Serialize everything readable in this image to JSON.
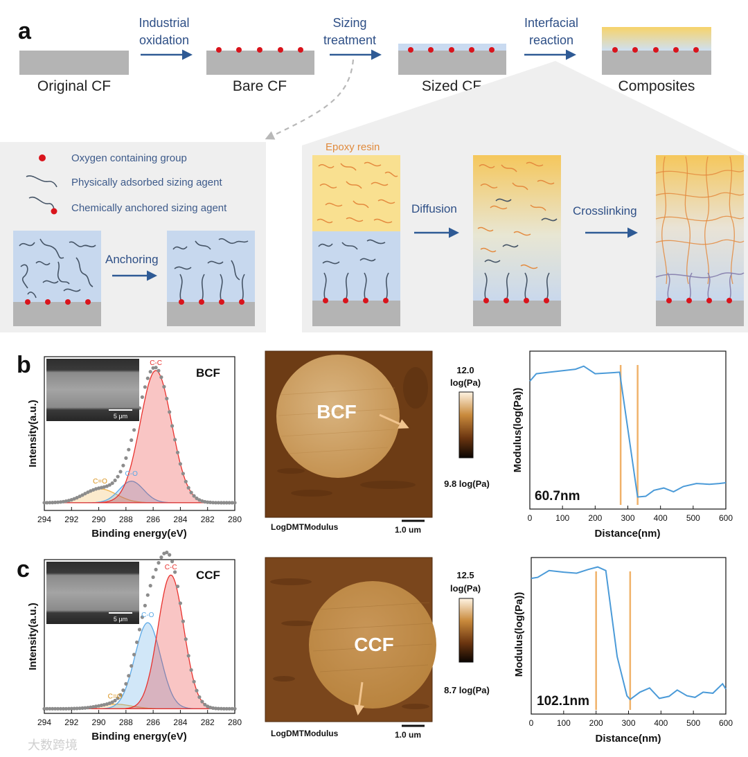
{
  "panel_a": {
    "label": "a",
    "stages": [
      "Original CF",
      "Bare CF",
      "Sized CF",
      "Composites"
    ],
    "steps": [
      {
        "line1": "Industrial",
        "line2": "oxidation"
      },
      {
        "line1": "Sizing",
        "line2": "treatment"
      },
      {
        "line1": "Interfacial",
        "line2": "reaction"
      }
    ],
    "legend": [
      "Oxygen containing group",
      "Physically adsorbed sizing agent",
      "Chemically anchored sizing agent"
    ],
    "anchoring_label": "Anchoring",
    "epoxy_label": "Epoxy resin",
    "diffusion_label": "Diffusion",
    "crosslinking_label": "Crosslinking"
  },
  "panel_b": {
    "label": "b",
    "sample": "BCF",
    "scale_bar_sem": "5 μm",
    "afm_label": "BCF",
    "colorbar_max": "12.0",
    "colorbar_unit": "log(Pa)",
    "colorbar_min": "9.8 log(Pa)",
    "afm_caption": "LogDMTModulus",
    "afm_scale": "1.0 um",
    "thickness": "60.7nm"
  },
  "panel_c": {
    "label": "c",
    "sample": "CCF",
    "scale_bar_sem": "5 μm",
    "afm_label": "CCF",
    "colorbar_max": "12.5",
    "colorbar_unit": "log(Pa)",
    "colorbar_min": "8.7 log(Pa)",
    "afm_caption": "LogDMTModulus",
    "afm_scale": "1.0 um",
    "thickness": "102.1nm"
  },
  "watermark": "大数跨境",
  "chart_data": [
    {
      "id": "xps-bcf",
      "type": "line",
      "title": "",
      "xlabel": "Binding energy(eV)",
      "ylabel": "Intensity(a.u.)",
      "xlim": [
        294,
        280
      ],
      "ylim": [
        0,
        1
      ],
      "xticks": [
        "294",
        "292",
        "290",
        "288",
        "286",
        "284",
        "282",
        "280"
      ],
      "peaks": [
        {
          "name": "C=O",
          "center": 289.9,
          "height": 0.09,
          "width": 1.2,
          "color": "#f0b24a"
        },
        {
          "name": "C-O",
          "center": 287.6,
          "height": 0.14,
          "width": 0.9,
          "color": "#5aa8e6"
        },
        {
          "name": "C-C",
          "center": 285.8,
          "height": 0.86,
          "width": 1.15,
          "color": "#e8302c"
        }
      ],
      "baseline": 0.05
    },
    {
      "id": "xps-ccf",
      "type": "line",
      "title": "",
      "xlabel": "Binding energy(eV)",
      "ylabel": "Intensity(a.u.)",
      "xlim": [
        294,
        280
      ],
      "ylim": [
        0,
        1
      ],
      "xticks": [
        "294",
        "292",
        "290",
        "288",
        "286",
        "284",
        "282",
        "280"
      ],
      "peaks": [
        {
          "name": "C=O",
          "center": 288.8,
          "height": 0.03,
          "width": 1.2,
          "color": "#f0b24a"
        },
        {
          "name": "C-O",
          "center": 286.4,
          "height": 0.56,
          "width": 0.95,
          "color": "#5aa8e6"
        },
        {
          "name": "C-C",
          "center": 284.7,
          "height": 0.87,
          "width": 0.95,
          "color": "#e8302c"
        }
      ],
      "baseline": 0.03
    },
    {
      "id": "modulus-bcf",
      "type": "line",
      "xlabel": "Distance(nm)",
      "ylabel": "Modulus(log(Pa))",
      "xlim": [
        0,
        600
      ],
      "xticks": [
        "0",
        "100",
        "200",
        "300",
        "400",
        "500",
        "600"
      ],
      "series": [
        {
          "name": "modulus",
          "x": [
            0,
            20,
            60,
            100,
            140,
            165,
            200,
            240,
            275,
            330,
            355,
            380,
            410,
            440,
            470,
            510,
            550,
            580,
            600
          ],
          "y": [
            11.6,
            11.7,
            11.72,
            11.74,
            11.76,
            11.8,
            11.7,
            11.71,
            11.72,
            10.06,
            10.07,
            10.15,
            10.18,
            10.13,
            10.2,
            10.24,
            10.23,
            10.24,
            10.25
          ]
        }
      ],
      "markers_x": [
        278,
        330
      ],
      "ylim": [
        9.9,
        12.0
      ]
    },
    {
      "id": "modulus-ccf",
      "type": "line",
      "xlabel": "Distance(nm)",
      "ylabel": "Modulus(log(Pa))",
      "xlim": [
        0,
        600
      ],
      "xticks": [
        "0",
        "100",
        "200",
        "300",
        "400",
        "500",
        "600"
      ],
      "series": [
        {
          "name": "modulus",
          "x": [
            0,
            20,
            55,
            100,
            140,
            175,
            205,
            230,
            265,
            295,
            305,
            335,
            365,
            395,
            425,
            450,
            480,
            505,
            530,
            560,
            590,
            600
          ],
          "y": [
            11.8,
            11.82,
            11.95,
            11.92,
            11.9,
            11.97,
            12.02,
            11.95,
            10.3,
            9.55,
            9.48,
            9.62,
            9.7,
            9.5,
            9.54,
            9.66,
            9.55,
            9.52,
            9.62,
            9.6,
            9.78,
            9.68
          ]
        }
      ],
      "markers_x": [
        200,
        305
      ],
      "ylim": [
        9.2,
        12.2
      ]
    }
  ]
}
